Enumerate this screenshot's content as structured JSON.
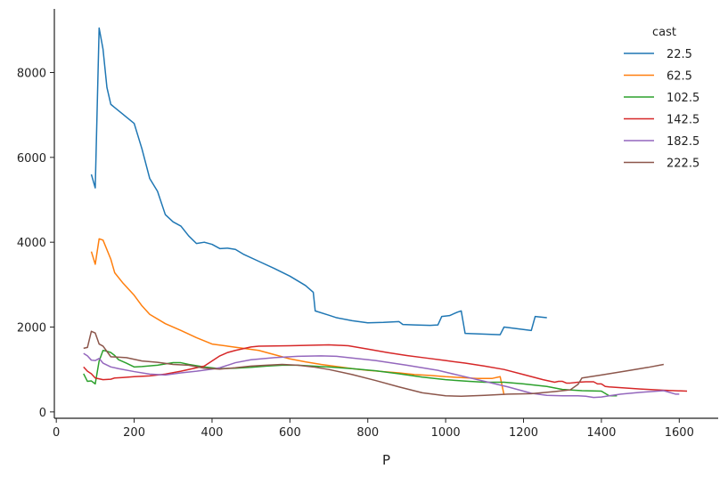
{
  "chart_data": {
    "type": "line",
    "xlabel": "P",
    "ylabel": "",
    "xlim": [
      -5,
      1700
    ],
    "ylim": [
      -150,
      9500
    ],
    "x_ticks": [
      0,
      200,
      400,
      600,
      800,
      1000,
      1200,
      1400,
      1600
    ],
    "y_ticks": [
      0,
      2000,
      4000,
      6000,
      8000
    ],
    "grid": false,
    "legend": {
      "title": "cast",
      "placement": "top-right"
    },
    "series": [
      {
        "name": "22.5",
        "color": "#1f77b4",
        "x": [
          90,
          100,
          110,
          120,
          130,
          140,
          160,
          180,
          200,
          220,
          240,
          260,
          280,
          300,
          320,
          340,
          360,
          380,
          400,
          420,
          440,
          460,
          480,
          520,
          560,
          600,
          640,
          660,
          665,
          700,
          720,
          760,
          800,
          840,
          880,
          890,
          920,
          960,
          980,
          990,
          1010,
          1030,
          1040,
          1050,
          1140,
          1150,
          1220,
          1230,
          1260
        ],
        "y": [
          5600,
          5280,
          9050,
          8550,
          7650,
          7250,
          7100,
          6950,
          6800,
          6200,
          5500,
          5200,
          4650,
          4480,
          4380,
          4150,
          3970,
          4000,
          3950,
          3850,
          3860,
          3830,
          3720,
          3550,
          3380,
          3200,
          2980,
          2820,
          2380,
          2280,
          2220,
          2150,
          2100,
          2110,
          2130,
          2060,
          2050,
          2040,
          2050,
          2250,
          2270,
          2350,
          2380,
          1850,
          1820,
          2000,
          1920,
          2250,
          2220
        ]
      },
      {
        "name": "62.5",
        "color": "#ff7f0e",
        "x": [
          90,
          100,
          110,
          120,
          140,
          150,
          170,
          200,
          220,
          240,
          280,
          320,
          360,
          400,
          440,
          480,
          520,
          560,
          600,
          640,
          680,
          720,
          760,
          800,
          840,
          880,
          920,
          960,
          1000,
          1040,
          1080,
          1120,
          1140,
          1150
        ],
        "y": [
          3780,
          3480,
          4080,
          4050,
          3600,
          3280,
          3050,
          2750,
          2500,
          2300,
          2080,
          1920,
          1750,
          1600,
          1550,
          1500,
          1450,
          1350,
          1250,
          1180,
          1120,
          1070,
          1020,
          980,
          950,
          920,
          880,
          860,
          830,
          810,
          790,
          790,
          830,
          400
        ]
      },
      {
        "name": "102.5",
        "color": "#2ca02c",
        "x": [
          70,
          80,
          90,
          100,
          110,
          120,
          130,
          140,
          150,
          160,
          180,
          200,
          220,
          260,
          300,
          320,
          340,
          380,
          420,
          460,
          500,
          540,
          580,
          620,
          660,
          700,
          760,
          820,
          880,
          940,
          1000,
          1060,
          1100,
          1150,
          1200,
          1260,
          1300,
          1350,
          1400,
          1420,
          1440
        ],
        "y": [
          900,
          720,
          730,
          660,
          1200,
          1450,
          1430,
          1400,
          1330,
          1230,
          1150,
          1060,
          1070,
          1100,
          1160,
          1160,
          1120,
          1060,
          1020,
          1030,
          1050,
          1080,
          1100,
          1100,
          1080,
          1060,
          1020,
          970,
          900,
          820,
          760,
          720,
          700,
          700,
          660,
          600,
          530,
          500,
          490,
          380,
          380
        ]
      },
      {
        "name": "142.5",
        "color": "#d62728",
        "x": [
          70,
          80,
          90,
          100,
          120,
          140,
          150,
          170,
          200,
          240,
          280,
          320,
          360,
          380,
          400,
          420,
          440,
          460,
          500,
          520,
          600,
          650,
          700,
          750,
          800,
          850,
          900,
          950,
          1000,
          1050,
          1100,
          1150,
          1200,
          1250,
          1280,
          1290,
          1300,
          1310,
          1320,
          1340,
          1360,
          1380,
          1390,
          1400,
          1410,
          1420,
          1500,
          1560,
          1620
        ],
        "y": [
          1060,
          960,
          900,
          800,
          760,
          770,
          800,
          810,
          830,
          850,
          890,
          960,
          1040,
          1080,
          1200,
          1320,
          1400,
          1450,
          1530,
          1550,
          1560,
          1570,
          1580,
          1560,
          1480,
          1400,
          1330,
          1270,
          1210,
          1150,
          1080,
          1000,
          880,
          760,
          700,
          720,
          720,
          680,
          680,
          700,
          710,
          710,
          660,
          660,
          600,
          590,
          540,
          510,
          490
        ]
      },
      {
        "name": "182.5",
        "color": "#9467bd",
        "x": [
          70,
          80,
          90,
          100,
          110,
          120,
          140,
          160,
          200,
          240,
          280,
          320,
          360,
          400,
          420,
          440,
          460,
          500,
          560,
          620,
          680,
          720,
          780,
          820,
          900,
          980,
          1040,
          1100,
          1160,
          1220,
          1260,
          1300,
          1340,
          1360,
          1380,
          1400,
          1420,
          1450,
          1500,
          1560,
          1590,
          1600
        ],
        "y": [
          1380,
          1320,
          1220,
          1210,
          1260,
          1150,
          1060,
          1020,
          950,
          890,
          870,
          920,
          960,
          1010,
          1040,
          1100,
          1160,
          1230,
          1280,
          1310,
          1320,
          1310,
          1250,
          1210,
          1100,
          980,
          850,
          720,
          590,
          440,
          390,
          380,
          380,
          370,
          340,
          350,
          380,
          420,
          460,
          500,
          420,
          420
        ]
      },
      {
        "name": "222.5",
        "color": "#8c564b",
        "x": [
          70,
          80,
          90,
          100,
          110,
          120,
          140,
          180,
          220,
          260,
          300,
          340,
          380,
          420,
          460,
          500,
          540,
          580,
          620,
          660,
          700,
          760,
          820,
          880,
          940,
          1000,
          1040,
          1100,
          1160,
          1220,
          1280,
          1320,
          1340,
          1350,
          1400,
          1460,
          1520,
          1560
        ],
        "y": [
          1500,
          1520,
          1900,
          1860,
          1600,
          1550,
          1300,
          1280,
          1200,
          1170,
          1120,
          1100,
          1030,
          1010,
          1040,
          1080,
          1100,
          1120,
          1100,
          1060,
          1000,
          880,
          740,
          590,
          450,
          380,
          370,
          390,
          420,
          430,
          480,
          520,
          650,
          800,
          870,
          960,
          1050,
          1120
        ]
      }
    ]
  }
}
